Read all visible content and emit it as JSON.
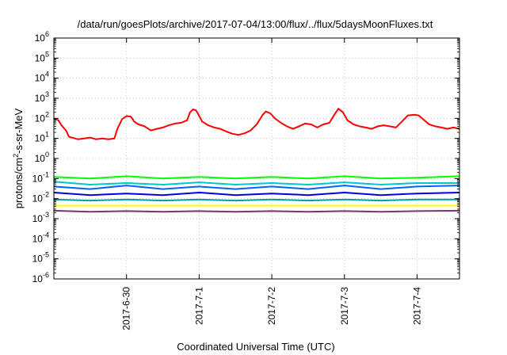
{
  "chart_data": {
    "type": "line",
    "title": "/data/run/goesPlots/archive/2017-07-04/13:00/flux/../flux/5daysMoonFluxes.txt",
    "xlabel": "Coordinated Universal Time (UTC)",
    "ylabel_parts": [
      "protons/cm",
      "2",
      "-s-sr-MeV"
    ],
    "y_scale": "log",
    "ylim": [
      1e-06,
      1000000.0
    ],
    "y_ticks": [
      {
        "value": 1e-06,
        "base": "10",
        "exp": "-6"
      },
      {
        "value": 1e-05,
        "base": "10",
        "exp": "-5"
      },
      {
        "value": 0.0001,
        "base": "10",
        "exp": "-4"
      },
      {
        "value": 0.001,
        "base": "10",
        "exp": "-3"
      },
      {
        "value": 0.01,
        "base": "10",
        "exp": "-2"
      },
      {
        "value": 0.1,
        "base": "10",
        "exp": "-1"
      },
      {
        "value": 1,
        "base": "10",
        "exp": "0"
      },
      {
        "value": 10,
        "base": "10",
        "exp": "1"
      },
      {
        "value": 100,
        "base": "10",
        "exp": "2"
      },
      {
        "value": 1000,
        "base": "10",
        "exp": "3"
      },
      {
        "value": 10000,
        "base": "10",
        "exp": "4"
      },
      {
        "value": 100000,
        "base": "10",
        "exp": "5"
      },
      {
        "value": 1000000,
        "base": "10",
        "exp": "6"
      }
    ],
    "xlim": [
      "2017-06-29 00:00",
      "2017-07-04 14:00"
    ],
    "x_ticks": [
      "2017-6-30",
      "2017-7-1",
      "2017-7-2",
      "2017-7-3",
      "2017-7-4"
    ],
    "grid": true,
    "series": [
      {
        "color": "#ff0000",
        "points": [
          [
            "2017-06-29 00:00",
            100
          ],
          [
            "2017-06-29 01:30",
            80
          ],
          [
            "2017-06-29 02:30",
            45
          ],
          [
            "2017-06-29 04:00",
            25
          ],
          [
            "2017-06-29 05:00",
            12
          ],
          [
            "2017-06-29 06:00",
            11
          ],
          [
            "2017-06-29 08:00",
            9
          ],
          [
            "2017-06-29 10:00",
            10
          ],
          [
            "2017-06-29 12:00",
            11
          ],
          [
            "2017-06-29 14:00",
            9
          ],
          [
            "2017-06-29 16:00",
            10
          ],
          [
            "2017-06-29 18:00",
            9
          ],
          [
            "2017-06-29 20:00",
            10
          ],
          [
            "2017-06-29 21:00",
            30
          ],
          [
            "2017-06-29 22:30",
            90
          ],
          [
            "2017-06-30 00:00",
            130
          ],
          [
            "2017-06-30 01:30",
            120
          ],
          [
            "2017-06-30 02:30",
            70
          ],
          [
            "2017-06-30 04:00",
            50
          ],
          [
            "2017-06-30 06:00",
            40
          ],
          [
            "2017-06-30 08:00",
            25
          ],
          [
            "2017-06-30 10:00",
            30
          ],
          [
            "2017-06-30 12:00",
            35
          ],
          [
            "2017-06-30 14:00",
            45
          ],
          [
            "2017-06-30 16:00",
            55
          ],
          [
            "2017-06-30 18:00",
            60
          ],
          [
            "2017-06-30 20:00",
            80
          ],
          [
            "2017-06-30 21:00",
            200
          ],
          [
            "2017-06-30 22:00",
            280
          ],
          [
            "2017-06-30 23:00",
            250
          ],
          [
            "2017-07-01 00:00",
            130
          ],
          [
            "2017-07-01 01:00",
            70
          ],
          [
            "2017-07-01 03:00",
            45
          ],
          [
            "2017-07-01 05:00",
            35
          ],
          [
            "2017-07-01 07:00",
            30
          ],
          [
            "2017-07-01 09:00",
            22
          ],
          [
            "2017-07-01 11:00",
            17
          ],
          [
            "2017-07-01 13:00",
            15
          ],
          [
            "2017-07-01 15:00",
            18
          ],
          [
            "2017-07-01 17:00",
            25
          ],
          [
            "2017-07-01 19:00",
            50
          ],
          [
            "2017-07-01 21:00",
            150
          ],
          [
            "2017-07-01 22:00",
            220
          ],
          [
            "2017-07-01 23:30",
            180
          ],
          [
            "2017-07-02 01:00",
            100
          ],
          [
            "2017-07-02 03:00",
            60
          ],
          [
            "2017-07-02 05:00",
            40
          ],
          [
            "2017-07-02 07:00",
            30
          ],
          [
            "2017-07-02 09:00",
            40
          ],
          [
            "2017-07-02 11:00",
            55
          ],
          [
            "2017-07-02 13:00",
            50
          ],
          [
            "2017-07-02 15:00",
            35
          ],
          [
            "2017-07-02 17:00",
            50
          ],
          [
            "2017-07-02 19:00",
            60
          ],
          [
            "2017-07-02 21:00",
            180
          ],
          [
            "2017-07-02 22:00",
            300
          ],
          [
            "2017-07-02 23:30",
            200
          ],
          [
            "2017-07-03 01:00",
            80
          ],
          [
            "2017-07-03 03:00",
            50
          ],
          [
            "2017-07-03 05:00",
            40
          ],
          [
            "2017-07-03 07:00",
            35
          ],
          [
            "2017-07-03 09:00",
            30
          ],
          [
            "2017-07-03 11:00",
            40
          ],
          [
            "2017-07-03 13:00",
            45
          ],
          [
            "2017-07-03 15:00",
            40
          ],
          [
            "2017-07-03 17:00",
            35
          ],
          [
            "2017-07-03 19:00",
            70
          ],
          [
            "2017-07-03 21:00",
            140
          ],
          [
            "2017-07-03 23:00",
            150
          ],
          [
            "2017-07-04 00:30",
            140
          ],
          [
            "2017-07-04 02:00",
            90
          ],
          [
            "2017-07-04 04:00",
            50
          ],
          [
            "2017-07-04 06:00",
            40
          ],
          [
            "2017-07-04 08:00",
            35
          ],
          [
            "2017-07-04 10:00",
            30
          ],
          [
            "2017-07-04 12:00",
            35
          ],
          [
            "2017-07-04 14:00",
            30
          ]
        ]
      },
      {
        "color": "#00ff00",
        "points": [
          [
            "2017-06-29 00:00",
            0.12
          ],
          [
            "2017-06-29 12:00",
            0.1
          ],
          [
            "2017-06-30 00:00",
            0.13
          ],
          [
            "2017-06-30 12:00",
            0.1
          ],
          [
            "2017-07-01 00:00",
            0.12
          ],
          [
            "2017-07-01 12:00",
            0.1
          ],
          [
            "2017-07-02 00:00",
            0.12
          ],
          [
            "2017-07-02 12:00",
            0.1
          ],
          [
            "2017-07-03 00:00",
            0.13
          ],
          [
            "2017-07-03 12:00",
            0.1
          ],
          [
            "2017-07-04 00:00",
            0.11
          ],
          [
            "2017-07-04 14:00",
            0.13
          ]
        ]
      },
      {
        "color": "#00c8c8",
        "points": [
          [
            "2017-06-29 00:00",
            0.07
          ],
          [
            "2017-06-29 12:00",
            0.05
          ],
          [
            "2017-06-30 00:00",
            0.06
          ],
          [
            "2017-06-30 12:00",
            0.05
          ],
          [
            "2017-07-01 00:00",
            0.065
          ],
          [
            "2017-07-01 12:00",
            0.05
          ],
          [
            "2017-07-02 00:00",
            0.06
          ],
          [
            "2017-07-02 12:00",
            0.05
          ],
          [
            "2017-07-03 00:00",
            0.065
          ],
          [
            "2017-07-03 12:00",
            0.05
          ],
          [
            "2017-07-04 00:00",
            0.06
          ],
          [
            "2017-07-04 14:00",
            0.06
          ]
        ]
      },
      {
        "color": "#0064ff",
        "points": [
          [
            "2017-06-29 00:00",
            0.04
          ],
          [
            "2017-06-29 12:00",
            0.03
          ],
          [
            "2017-06-30 00:00",
            0.045
          ],
          [
            "2017-06-30 12:00",
            0.03
          ],
          [
            "2017-07-01 00:00",
            0.04
          ],
          [
            "2017-07-01 12:00",
            0.03
          ],
          [
            "2017-07-02 00:00",
            0.04
          ],
          [
            "2017-07-02 12:00",
            0.03
          ],
          [
            "2017-07-03 00:00",
            0.045
          ],
          [
            "2017-07-03 12:00",
            0.03
          ],
          [
            "2017-07-04 00:00",
            0.04
          ],
          [
            "2017-07-04 14:00",
            0.045
          ]
        ]
      },
      {
        "color": "#0000e6",
        "points": [
          [
            "2017-06-29 00:00",
            0.02
          ],
          [
            "2017-06-29 12:00",
            0.015
          ],
          [
            "2017-06-30 00:00",
            0.018
          ],
          [
            "2017-06-30 12:00",
            0.015
          ],
          [
            "2017-07-01 00:00",
            0.02
          ],
          [
            "2017-07-01 12:00",
            0.015
          ],
          [
            "2017-07-02 00:00",
            0.018
          ],
          [
            "2017-07-02 12:00",
            0.015
          ],
          [
            "2017-07-03 00:00",
            0.02
          ],
          [
            "2017-07-03 12:00",
            0.015
          ],
          [
            "2017-07-04 00:00",
            0.018
          ],
          [
            "2017-07-04 14:00",
            0.02
          ]
        ]
      },
      {
        "color": "#00a0a0",
        "points": [
          [
            "2017-06-29 00:00",
            0.009
          ],
          [
            "2017-06-29 12:00",
            0.008
          ],
          [
            "2017-06-30 00:00",
            0.009
          ],
          [
            "2017-06-30 12:00",
            0.008
          ],
          [
            "2017-07-01 00:00",
            0.009
          ],
          [
            "2017-07-01 12:00",
            0.008
          ],
          [
            "2017-07-02 00:00",
            0.009
          ],
          [
            "2017-07-02 12:00",
            0.008
          ],
          [
            "2017-07-03 00:00",
            0.009
          ],
          [
            "2017-07-03 12:00",
            0.008
          ],
          [
            "2017-07-04 00:00",
            0.009
          ],
          [
            "2017-07-04 14:00",
            0.009
          ]
        ]
      },
      {
        "color": "#ffff00",
        "points": [
          [
            "2017-06-29 00:00",
            0.0045
          ],
          [
            "2017-06-30 00:00",
            0.0045
          ],
          [
            "2017-07-01 00:00",
            0.0045
          ],
          [
            "2017-07-02 00:00",
            0.0045
          ],
          [
            "2017-07-03 00:00",
            0.0045
          ],
          [
            "2017-07-04 00:00",
            0.0045
          ],
          [
            "2017-07-04 14:00",
            0.0045
          ]
        ]
      },
      {
        "color": "#80306e",
        "points": [
          [
            "2017-06-29 00:00",
            0.0025
          ],
          [
            "2017-06-29 12:00",
            0.0022
          ],
          [
            "2017-06-30 00:00",
            0.0024
          ],
          [
            "2017-06-30 12:00",
            0.0022
          ],
          [
            "2017-07-01 00:00",
            0.0024
          ],
          [
            "2017-07-01 12:00",
            0.0022
          ],
          [
            "2017-07-02 00:00",
            0.0024
          ],
          [
            "2017-07-02 12:00",
            0.0022
          ],
          [
            "2017-07-03 00:00",
            0.0024
          ],
          [
            "2017-07-03 12:00",
            0.0022
          ],
          [
            "2017-07-04 00:00",
            0.0024
          ],
          [
            "2017-07-04 14:00",
            0.0025
          ]
        ]
      }
    ]
  }
}
